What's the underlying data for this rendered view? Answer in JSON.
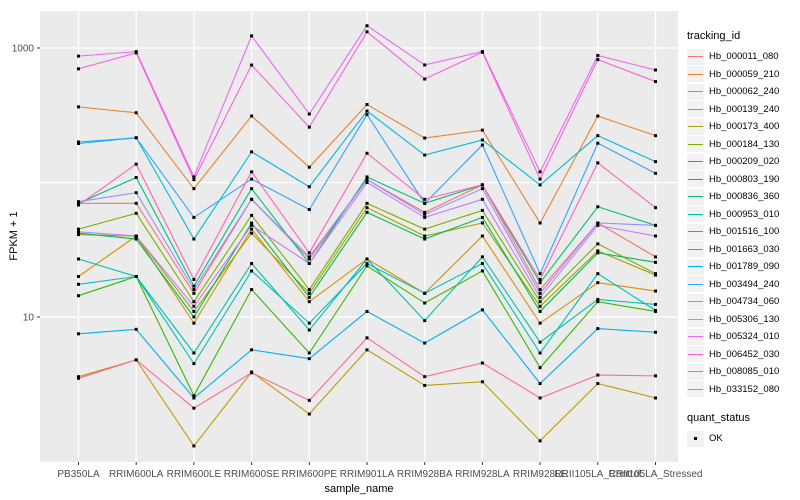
{
  "style": {
    "background": "#FFFFFF",
    "panel_bg": "#EBEBEB",
    "gridline_color": "#FFFFFF",
    "tick_color": "#333333",
    "tick_label_color": "#4D4D4D",
    "axis_title_color": "#000000",
    "legend_key_bg": "#F2F2F2",
    "point_color": "#000000"
  },
  "chart_data": {
    "type": "line",
    "title": "",
    "xlabel": "sample_name",
    "ylabel": "FPKM + 1",
    "y_scale": "log10",
    "ylim": [
      1,
      2000
    ],
    "grid": "major-only",
    "legend_position": "right",
    "marker": "small-black-square",
    "y_ticks": [
      {
        "value": 1000,
        "label": "1000"
      },
      {
        "value": 10,
        "label": "10"
      }
    ],
    "y_gridlines": [
      1000,
      100,
      10
    ],
    "categories": [
      "PB350LA",
      "RRIM600LA",
      "RRIM600LE",
      "RRIM600SE",
      "RRIM600PE",
      "RRIM901LA",
      "RRIM928BA",
      "RRIM928LA",
      "RRIM928LE",
      "RRII105LA_Control",
      "RRII105LA_Stressed"
    ],
    "series": [
      {
        "name": "Hb_000011_080",
        "color": "#F8766D",
        "values": [
          70,
          70,
          15,
          75,
          27,
          105,
          60,
          96,
          16,
          50,
          28
        ]
      },
      {
        "name": "Hb_000059_210",
        "color": "#EA8331",
        "values": [
          365,
          330,
          90,
          312,
          130,
          380,
          214,
          245,
          50,
          312,
          223
        ]
      },
      {
        "name": "Hb_000062_240",
        "color": "#D89000",
        "values": [
          20,
          40,
          9,
          45,
          13,
          27,
          15,
          40,
          9,
          18,
          15.6
        ]
      },
      {
        "name": "Hb_000139_240",
        "color": "#C09B00",
        "values": [
          3.6,
          4.8,
          1.1,
          3.9,
          1.9,
          5.7,
          3.1,
          3.3,
          1.2,
          3.2,
          2.5
        ]
      },
      {
        "name": "Hb_000173_400",
        "color": "#A3A500",
        "values": [
          41,
          40,
          11,
          42,
          15,
          65,
          40,
          50,
          12,
          31,
          20.5
        ]
      },
      {
        "name": "Hb_000184_130",
        "color": "#7CAE00",
        "values": [
          45,
          59,
          13,
          57,
          16,
          70,
          45,
          62,
          13,
          35,
          21
        ]
      },
      {
        "name": "Hb_000209_020",
        "color": "#39B600",
        "values": [
          14.4,
          20,
          2.6,
          16,
          5.4,
          24,
          12.7,
          22,
          4.2,
          13,
          11
        ]
      },
      {
        "name": "Hb_000803_190",
        "color": "#00BB4E",
        "values": [
          42,
          38,
          10,
          50,
          14,
          60,
          38,
          55,
          11,
          30,
          25.5
        ]
      },
      {
        "name": "Hb_000836_360",
        "color": "#00BF7D",
        "values": [
          70,
          109,
          17,
          90,
          25,
          110,
          70,
          96,
          18,
          66,
          48
        ]
      },
      {
        "name": "Hb_000953_010",
        "color": "#00C1A3",
        "values": [
          27,
          20,
          5.4,
          25,
          8,
          27,
          9.4,
          28,
          6.5,
          13.5,
          12.4
        ]
      },
      {
        "name": "Hb_001516_100",
        "color": "#00BFC4",
        "values": [
          17.5,
          20,
          4.5,
          22,
          9,
          25,
          15,
          25,
          5.4,
          21,
          11.2
        ]
      },
      {
        "name": "Hb_001663_030",
        "color": "#00BAE0",
        "values": [
          195,
          215,
          38,
          169,
          93,
          340,
          160,
          207,
          96,
          223,
          143
        ]
      },
      {
        "name": "Hb_001789_090",
        "color": "#00B0F6",
        "values": [
          7.5,
          8.1,
          2.5,
          5.7,
          4.9,
          11,
          6.4,
          11.3,
          3.2,
          8.2,
          7.7
        ]
      },
      {
        "name": "Hb_003494_240",
        "color": "#35A2FF",
        "values": [
          200,
          215,
          55,
          106,
          63,
          320,
          70,
          190,
          21,
          196,
          117
        ]
      },
      {
        "name": "Hb_004734_060",
        "color": "#9590FF",
        "values": [
          72,
          84,
          16,
          75,
          28,
          105,
          58,
          90,
          15,
          50,
          48
        ]
      },
      {
        "name": "Hb_005306_130",
        "color": "#C77CFF",
        "values": [
          43,
          40,
          12,
          48,
          25,
          100,
          55,
          75,
          14,
          48,
          40
        ]
      },
      {
        "name": "Hb_005324_010",
        "color": "#E76BF3",
        "values": [
          870,
          940,
          110,
          1230,
          323,
          1465,
          748,
          940,
          120,
          880,
          686
        ]
      },
      {
        "name": "Hb_006452_030",
        "color": "#FA62DB",
        "values": [
          700,
          920,
          105,
          747,
          258,
          1320,
          588,
          930,
          106,
          820,
          563
        ]
      },
      {
        "name": "Hb_008085_010",
        "color": "#FF62BC",
        "values": [
          68,
          137,
          19,
          120,
          30,
          165,
          75,
          96,
          19,
          140,
          65
        ]
      },
      {
        "name": "Hb_033152_080",
        "color": "#FF6A98",
        "values": [
          3.5,
          4.8,
          2.1,
          3.85,
          2.4,
          7.0,
          3.6,
          4.55,
          2.5,
          3.7,
          3.65
        ]
      }
    ],
    "legends": {
      "tracking": {
        "title": "tracking_id"
      },
      "quant": {
        "title": "quant_status",
        "items": [
          {
            "label": "OK",
            "marker": "black-square"
          }
        ]
      }
    }
  }
}
